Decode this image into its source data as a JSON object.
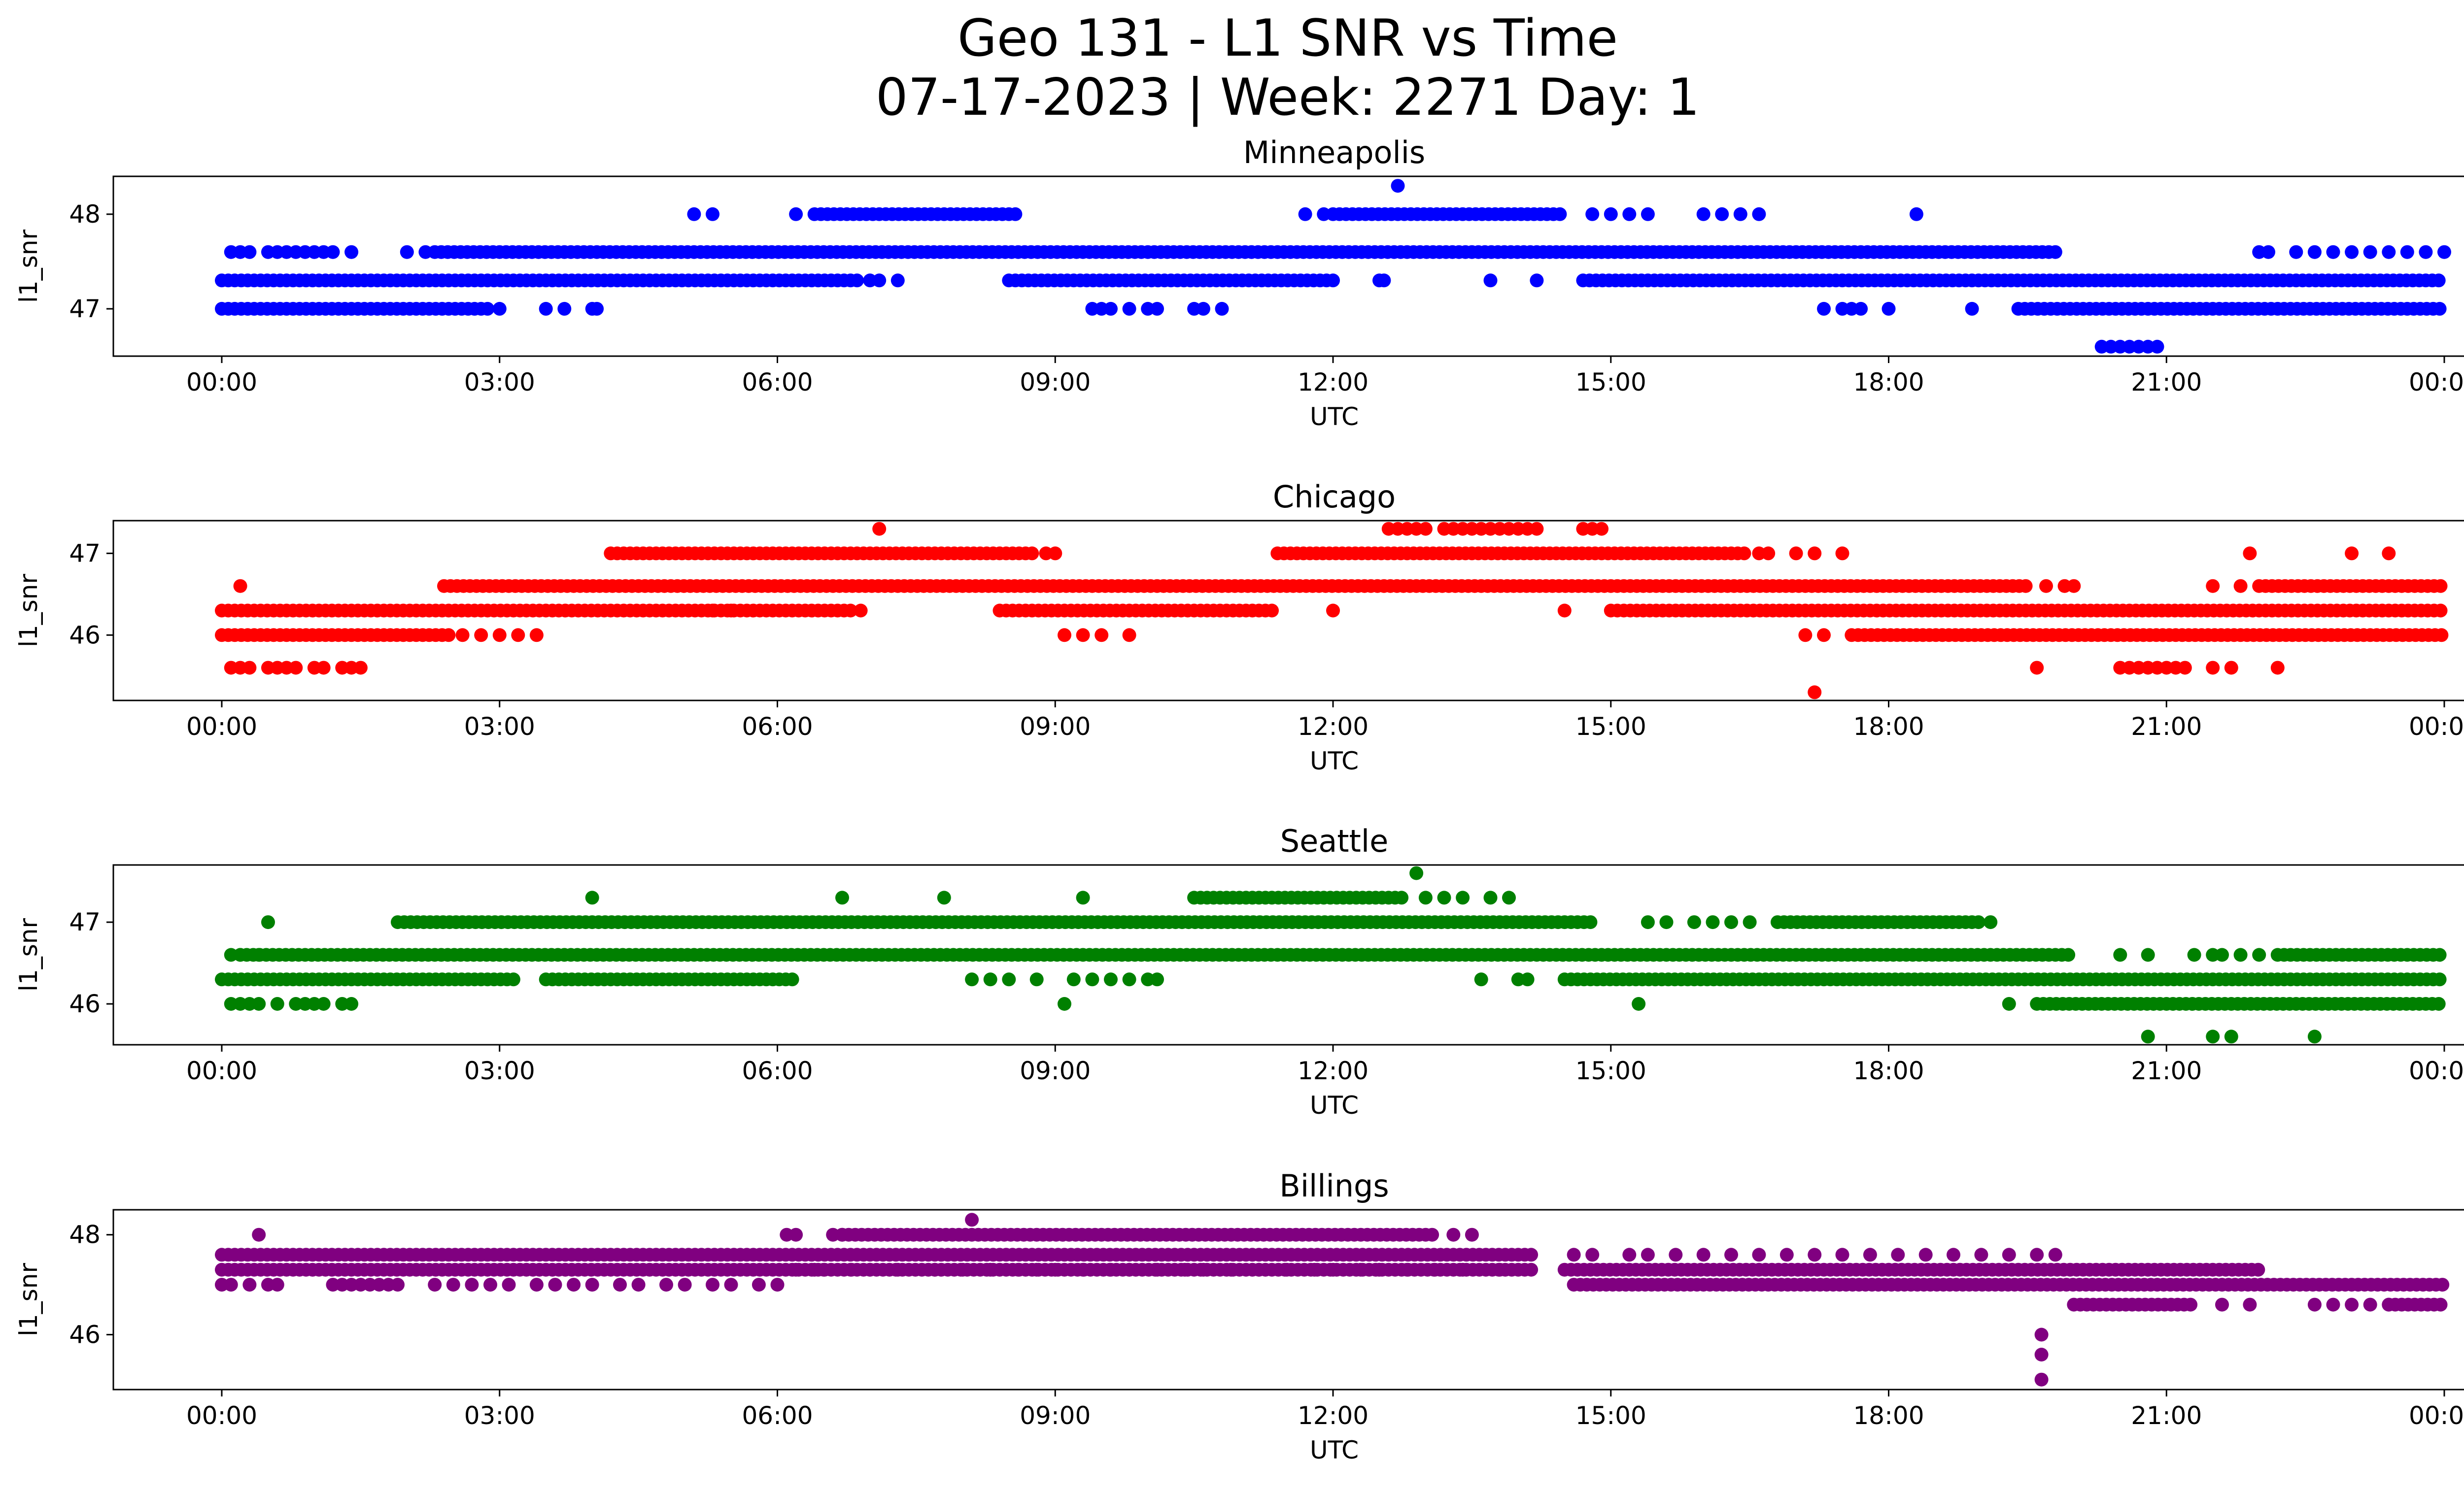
{
  "figure": {
    "title_line1": "Geo 131 - L1 SNR vs Time",
    "title_line2": "07-17-2023 | Week: 2271 Day: 1"
  },
  "chart_data": [
    {
      "type": "scatter",
      "title": "Minneapolis",
      "xlabel": "UTC",
      "ylabel": "l1_snr",
      "color": "#0000ff",
      "xlim": [
        "00:00",
        "24:00"
      ],
      "ylim": [
        46.5,
        48.4
      ],
      "yticks": [
        47,
        48
      ],
      "xtick_labels": [
        "00:00",
        "03:00",
        "06:00",
        "09:00",
        "12:00",
        "15:00",
        "18:00",
        "21:00",
        "00:00"
      ],
      "bands": [
        {
          "y": 47.0,
          "segments": [
            [
              0.0,
              2.9
            ],
            [
              19.4,
              24.0
            ]
          ]
        },
        {
          "y": 47.3,
          "segments": [
            [
              0.0,
              6.9
            ],
            [
              8.5,
              12.0
            ],
            [
              14.7,
              24.0
            ]
          ]
        },
        {
          "y": 47.6,
          "segments": [
            [
              2.3,
              19.8
            ]
          ]
        },
        {
          "y": 48.0,
          "segments": [
            [
              6.4,
              8.6
            ],
            [
              12.0,
              14.5
            ]
          ]
        }
      ],
      "scattered": [
        {
          "y": 47.0,
          "x": [
            3.0,
            3.5,
            3.7,
            4.0,
            4.05,
            9.4,
            9.5,
            9.6,
            9.8,
            10.0,
            10.1,
            10.5,
            10.6,
            10.8,
            17.3,
            17.5,
            17.6,
            17.7,
            18.0,
            18.9
          ]
        },
        {
          "y": 47.3,
          "x": [
            7.0,
            7.1,
            7.3,
            12.5,
            12.55,
            13.7,
            14.2
          ]
        },
        {
          "y": 47.6,
          "x": [
            0.1,
            0.2,
            0.3,
            0.5,
            0.6,
            0.7,
            0.8,
            0.9,
            1.0,
            1.1,
            1.2,
            1.4,
            2.0,
            2.2,
            22.0,
            22.1,
            22.4,
            22.6,
            22.8,
            23.0,
            23.2,
            23.4,
            23.6,
            23.8,
            24.0
          ]
        },
        {
          "y": 48.0,
          "x": [
            5.1,
            5.3,
            6.2,
            11.7,
            11.9,
            14.8,
            15.0,
            15.2,
            15.4,
            16.0,
            16.2,
            16.4,
            16.6,
            18.3
          ]
        },
        {
          "y": 48.3,
          "x": [
            12.7
          ]
        },
        {
          "y": 46.6,
          "x": [
            20.3,
            20.4,
            20.5,
            20.6,
            20.7,
            20.8,
            20.9
          ]
        }
      ]
    },
    {
      "type": "scatter",
      "title": "Chicago",
      "xlabel": "UTC",
      "ylabel": "l1_snr",
      "color": "#ff0000",
      "xlim": [
        "00:00",
        "24:00"
      ],
      "ylim": [
        45.2,
        47.4
      ],
      "yticks": [
        46,
        47
      ],
      "xtick_labels": [
        "00:00",
        "03:00",
        "06:00",
        "09:00",
        "12:00",
        "15:00",
        "18:00",
        "21:00",
        "00:00"
      ],
      "bands": [
        {
          "y": 46.0,
          "segments": [
            [
              0.0,
              2.5
            ],
            [
              17.6,
              24.0
            ]
          ]
        },
        {
          "y": 46.3,
          "segments": [
            [
              0.0,
              6.8
            ],
            [
              8.4,
              11.4
            ],
            [
              15.0,
              24.0
            ]
          ]
        },
        {
          "y": 46.6,
          "segments": [
            [
              2.4,
              19.5
            ],
            [
              22.0,
              24.0
            ]
          ]
        },
        {
          "y": 47.0,
          "segments": [
            [
              4.2,
              8.8
            ],
            [
              11.4,
              16.5
            ]
          ]
        }
      ],
      "scattered": [
        {
          "y": 45.6,
          "x": [
            0.1,
            0.2,
            0.3,
            0.5,
            0.6,
            0.7,
            0.8,
            1.0,
            1.1,
            1.3,
            1.4,
            1.5,
            19.6,
            20.5,
            20.6,
            20.7,
            20.8,
            20.9,
            21.0,
            21.1,
            21.2,
            21.5,
            21.7,
            22.2
          ]
        },
        {
          "y": 46.0,
          "x": [
            2.6,
            2.8,
            3.0,
            3.2,
            3.4,
            9.1,
            9.3,
            9.5,
            9.8,
            17.1,
            17.3
          ]
        },
        {
          "y": 46.3,
          "x": [
            5.3,
            5.5,
            6.9,
            12.0,
            14.5
          ]
        },
        {
          "y": 46.6,
          "x": [
            0.2,
            19.7,
            19.9,
            20.0,
            21.5,
            21.8
          ]
        },
        {
          "y": 47.0,
          "x": [
            8.9,
            9.0,
            16.6,
            16.7,
            17.0,
            17.2,
            17.5,
            21.9,
            23.0,
            23.4
          ]
        },
        {
          "y": 47.3,
          "x": [
            7.1,
            12.6,
            12.7,
            12.8,
            12.9,
            13.0,
            13.2,
            13.3,
            13.4,
            13.5,
            13.6,
            13.7,
            13.8,
            13.9,
            14.0,
            14.1,
            14.2,
            14.7,
            14.8,
            14.9
          ]
        },
        {
          "y": 45.3,
          "x": [
            17.2
          ]
        }
      ]
    },
    {
      "type": "scatter",
      "title": "Seattle",
      "xlabel": "UTC",
      "ylabel": "l1_snr",
      "color": "#008000",
      "xlim": [
        "00:00",
        "24:00"
      ],
      "ylim": [
        45.5,
        47.7
      ],
      "yticks": [
        46,
        47
      ],
      "xtick_labels": [
        "00:00",
        "03:00",
        "06:00",
        "09:00",
        "12:00",
        "15:00",
        "18:00",
        "21:00",
        "00:00"
      ],
      "bands": [
        {
          "y": 46.0,
          "segments": [
            [
              19.6,
              24.0
            ]
          ]
        },
        {
          "y": 46.3,
          "segments": [
            [
              0.0,
              3.2
            ],
            [
              3.5,
              6.2
            ],
            [
              14.5,
              24.0
            ]
          ]
        },
        {
          "y": 46.6,
          "segments": [
            [
              0.2,
              20.0
            ],
            [
              22.2,
              24.0
            ]
          ]
        },
        {
          "y": 47.0,
          "segments": [
            [
              1.9,
              14.8
            ],
            [
              16.8,
              19.0
            ]
          ]
        },
        {
          "y": 47.3,
          "segments": [
            [
              10.5,
              12.8
            ]
          ]
        }
      ],
      "scattered": [
        {
          "y": 46.0,
          "x": [
            0.1,
            0.2,
            0.3,
            0.4,
            0.6,
            0.8,
            0.9,
            1.0,
            1.1,
            1.3,
            1.4,
            9.1,
            15.3,
            19.3
          ]
        },
        {
          "y": 46.3,
          "x": [
            8.1,
            8.3,
            8.5,
            8.8,
            9.2,
            9.4,
            9.6,
            9.8,
            10.0,
            10.1,
            13.6,
            14.0,
            14.1
          ]
        },
        {
          "y": 46.6,
          "x": [
            20.5,
            20.8,
            21.3,
            21.5,
            21.6,
            21.8,
            22.0
          ]
        },
        {
          "y": 47.0,
          "x": [
            15.4,
            15.6,
            15.9,
            16.1,
            16.3,
            16.5,
            19.1
          ]
        },
        {
          "y": 47.3,
          "x": [
            4.0,
            6.7,
            7.8,
            9.3,
            13.0,
            13.2,
            13.4,
            13.7,
            13.9
          ]
        },
        {
          "y": 47.6,
          "x": [
            12.9
          ]
        },
        {
          "y": 46.6,
          "x": [
            0.1,
            0.2,
            0.4
          ]
        },
        {
          "y": 47.0,
          "x": [
            0.5
          ]
        },
        {
          "y": 45.6,
          "x": [
            20.8,
            21.5,
            21.7,
            22.6
          ]
        }
      ]
    },
    {
      "type": "scatter",
      "title": "Billings",
      "xlabel": "UTC",
      "ylabel": "l1_snr",
      "color": "#800080",
      "xlim": [
        "00:00",
        "24:00"
      ],
      "ylim": [
        44.9,
        48.5
      ],
      "yticks": [
        46,
        48
      ],
      "xtick_labels": [
        "00:00",
        "03:00",
        "06:00",
        "09:00",
        "12:00",
        "15:00",
        "18:00",
        "21:00",
        "00:00"
      ],
      "bands": [
        {
          "y": 46.6,
          "segments": [
            [
              20.0,
              21.3
            ],
            [
              23.4,
              24.0
            ]
          ]
        },
        {
          "y": 47.0,
          "segments": [
            [
              14.6,
              24.0
            ]
          ]
        },
        {
          "y": 47.3,
          "segments": [
            [
              0.0,
              14.2
            ],
            [
              14.5,
              22.0
            ]
          ]
        },
        {
          "y": 47.6,
          "segments": [
            [
              0.0,
              14.2
            ]
          ]
        },
        {
          "y": 48.0,
          "segments": [
            [
              6.7,
              13.1
            ]
          ]
        }
      ],
      "scattered": [
        {
          "y": 47.0,
          "x": [
            0.0,
            0.1,
            0.3,
            0.5,
            0.6,
            1.2,
            1.3,
            1.4,
            1.5,
            1.6,
            1.7,
            1.8,
            1.9,
            2.3,
            2.5,
            2.7,
            2.9,
            3.1,
            3.4,
            3.6,
            3.8,
            4.0,
            4.3,
            4.5,
            4.8,
            5.0,
            5.3,
            5.5,
            5.8,
            6.0
          ]
        },
        {
          "y": 47.3,
          "x": [
            6.2,
            6.4,
            6.5,
            6.8,
            7.0,
            7.3,
            7.7,
            8.0,
            8.3,
            8.6,
            8.8,
            9.0,
            9.3,
            9.6,
            9.8,
            10.1,
            10.4,
            10.6,
            10.9,
            11.2,
            11.5,
            11.8,
            12.0,
            12.3,
            12.5,
            12.8,
            13.1,
            13.4,
            13.8
          ]
        },
        {
          "y": 47.6,
          "x": [
            14.6,
            14.8,
            15.2,
            15.4,
            15.7,
            16.0,
            16.3,
            16.6,
            16.9,
            17.2,
            17.5,
            17.8,
            18.1,
            18.4,
            18.7,
            19.0,
            19.3,
            19.6,
            19.8
          ]
        },
        {
          "y": 48.0,
          "x": [
            0.4,
            6.1,
            6.2,
            6.6,
            6.7,
            13.3,
            13.5
          ]
        },
        {
          "y": 48.3,
          "x": [
            8.1
          ]
        },
        {
          "y": 46.6,
          "x": [
            21.6,
            21.9,
            22.6,
            22.8,
            23.0,
            23.2,
            23.4
          ]
        },
        {
          "y": 46.0,
          "x": [
            19.65
          ]
        },
        {
          "y": 45.6,
          "x": [
            19.65
          ]
        },
        {
          "y": 45.1,
          "x": [
            19.65
          ]
        }
      ]
    }
  ]
}
